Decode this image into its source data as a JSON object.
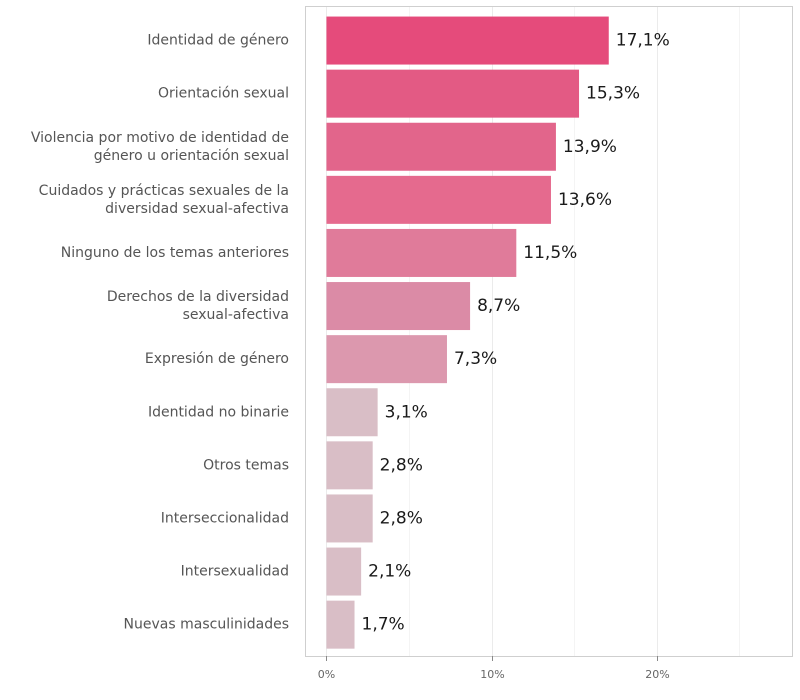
{
  "chart_data": {
    "type": "bar",
    "orientation": "horizontal",
    "categories": [
      "Identidad de género",
      "Orientación sexual",
      "Violencia por motivo de identidad de género u orientación sexual",
      "Cuidados y prácticas sexuales de la diversidad sexual-afectiva",
      "Ninguno de los temas anteriores",
      "Derechos de la diversidad sexual-afectiva",
      "Expresión de género",
      "Identidad no binarie",
      "Otros temas",
      "Interseccionalidad",
      "Intersexualidad",
      "Nuevas masculinidades"
    ],
    "category_lines": [
      [
        "Identidad de género"
      ],
      [
        "Orientación sexual"
      ],
      [
        "Violencia por motivo de identidad de",
        "género u orientación sexual"
      ],
      [
        "Cuidados y prácticas sexuales de la",
        "diversidad sexual-afectiva"
      ],
      [
        "Ninguno de los temas anteriores"
      ],
      [
        "Derechos de la diversidad",
        "sexual-afectiva"
      ],
      [
        "Expresión de género"
      ],
      [
        "Identidad no binarie"
      ],
      [
        "Otros temas"
      ],
      [
        "Interseccionalidad"
      ],
      [
        "Intersexualidad"
      ],
      [
        "Nuevas masculinidades"
      ]
    ],
    "values": [
      17.1,
      15.3,
      13.9,
      13.6,
      11.5,
      8.7,
      7.3,
      3.1,
      2.8,
      2.8,
      2.1,
      1.7
    ],
    "value_labels": [
      "17,1%",
      "15,3%",
      "13,9%",
      "13,6%",
      "11,5%",
      "8,7%",
      "7,3%",
      "3,1%",
      "2,8%",
      "2,8%",
      "2,1%",
      "1,7%"
    ],
    "bar_colors": [
      "#e54b7b",
      "#e35a84",
      "#e2658b",
      "#e56a8e",
      "#e07b9a",
      "#db8ba6",
      "#dc98ae",
      "#d9bec6",
      "#d9bec6",
      "#d9bec6",
      "#d9bec6",
      "#d9bec6"
    ],
    "xticks": [
      0,
      10,
      20
    ],
    "xtick_labels": [
      "0%",
      "10%",
      "20%"
    ],
    "xlim": [
      -1.3,
      28.2
    ],
    "xlabel": "",
    "ylabel": "",
    "title": "",
    "grid": "vertical",
    "legend": "none"
  }
}
